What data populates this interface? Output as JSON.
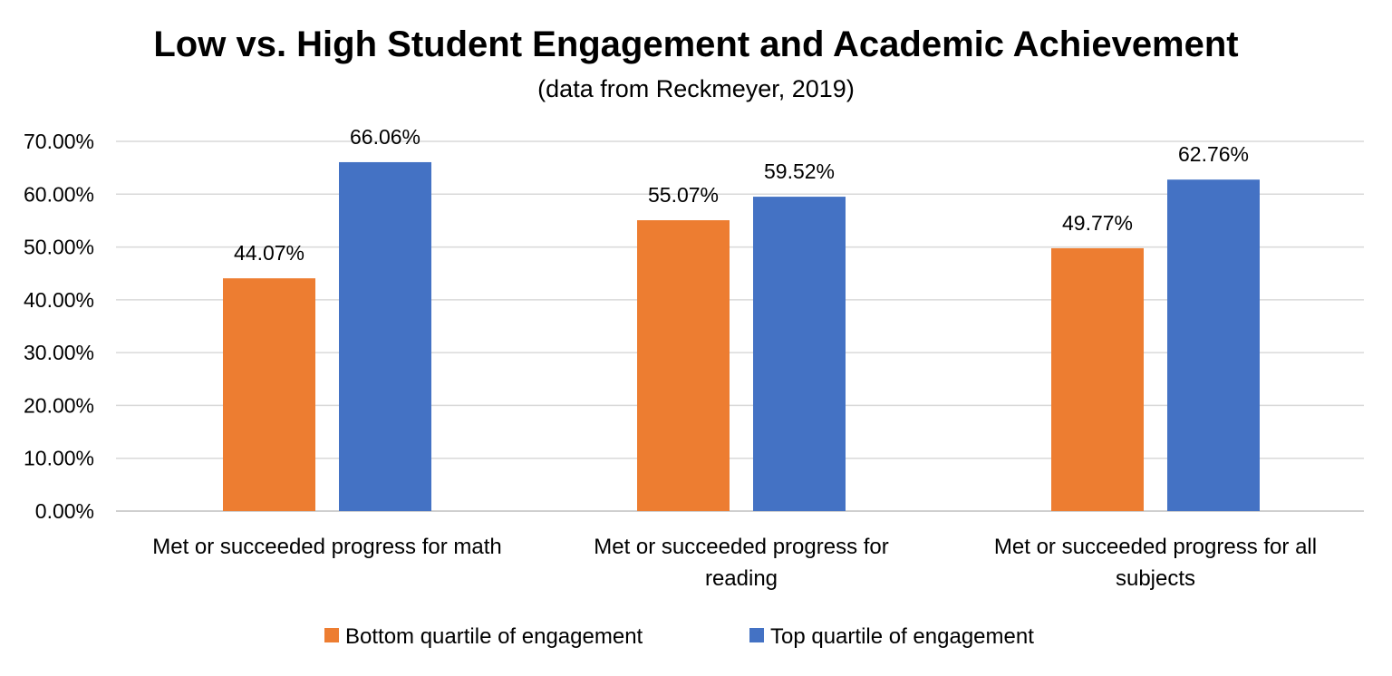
{
  "chart_data": {
    "type": "bar",
    "title": "Low vs. High Student Engagement and Academic Achievement",
    "subtitle": "(data from Reckmeyer, 2019)",
    "xlabel": "",
    "ylabel": "",
    "ylim": [
      0,
      70
    ],
    "y_ticks": [
      0,
      10,
      20,
      30,
      40,
      50,
      60,
      70
    ],
    "y_tick_labels": [
      "0.00%",
      "10.00%",
      "20.00%",
      "30.00%",
      "40.00%",
      "50.00%",
      "60.00%",
      "70.00%"
    ],
    "grid": true,
    "legend_position": "bottom",
    "categories": [
      [
        "Met or succeeded progress for math"
      ],
      [
        "Met or succeeded progress for",
        "reading"
      ],
      [
        "Met or succeeded progress for all",
        "subjects"
      ]
    ],
    "series": [
      {
        "name": "Bottom quartile of engagement",
        "color": "#ED7D31",
        "values": [
          44.07,
          55.07,
          49.77
        ],
        "labels": [
          "44.07%",
          "55.07%",
          "49.77%"
        ]
      },
      {
        "name": "Top quartile of engagement",
        "color": "#4472C4",
        "values": [
          66.06,
          59.52,
          62.76
        ],
        "labels": [
          "66.06%",
          "59.52%",
          "62.76%"
        ]
      }
    ]
  }
}
